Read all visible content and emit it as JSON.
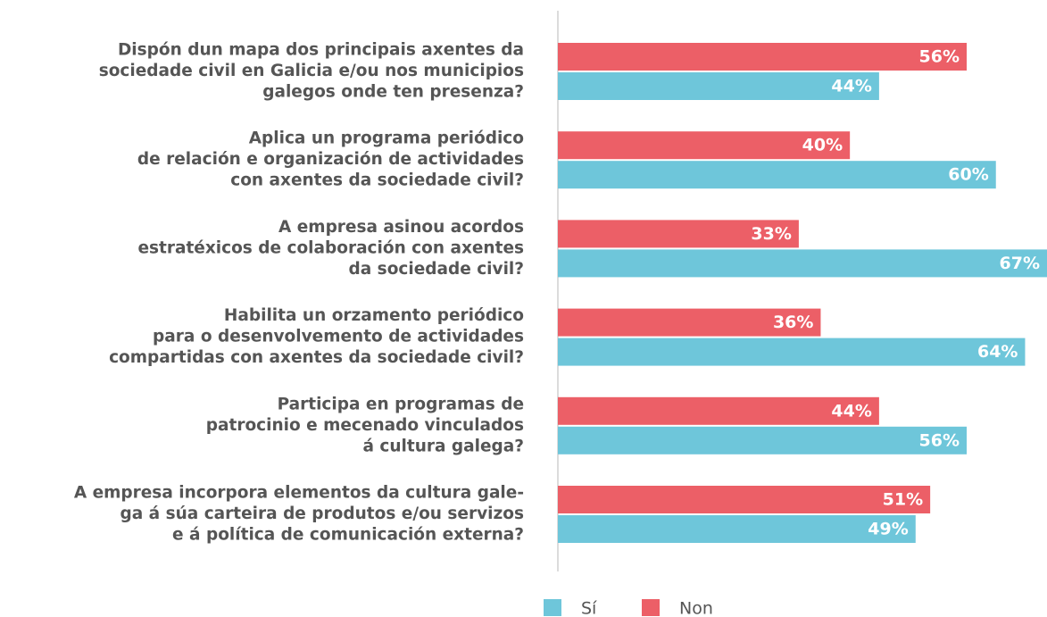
{
  "chart_data": {
    "type": "barh",
    "categories": [
      "Dispón dun mapa dos principais axentes da\nsociedade civil en Galicia e/ou nos municipios\ngalegos onde ten presenza?",
      "Aplica un programa periódico\nde relación e organización de actividades\ncon axentes da sociedade civil?",
      "A empresa asinou acordos\nestratéxicos de colaboración con axentes\nda sociedade civil?",
      "Habilita un orzamento periódico\npara o desenvolvemento de actividades\ncompartidas con axentes da sociedade civil?",
      "Participa en programas de\npatrocinio e mecenado vinculados\ná cultura galega?",
      "A empresa incorpora elementos da cultura gale-\nga á súa carteira de produtos e/ou servizos\ne á política de comunicación externa?"
    ],
    "series": [
      {
        "name": "Sí",
        "color": "#6ec6da",
        "values": [
          44,
          60,
          67,
          64,
          56,
          49
        ],
        "value_labels": [
          "44%",
          "60%",
          "67%",
          "64%",
          "56%",
          "49%"
        ]
      },
      {
        "name": "Non",
        "color": "#ec5f67",
        "values": [
          56,
          40,
          33,
          36,
          44,
          51
        ],
        "value_labels": [
          "56%",
          "40%",
          "33%",
          "36%",
          "44%",
          "51%"
        ]
      }
    ],
    "xlim": [
      0,
      67
    ]
  }
}
